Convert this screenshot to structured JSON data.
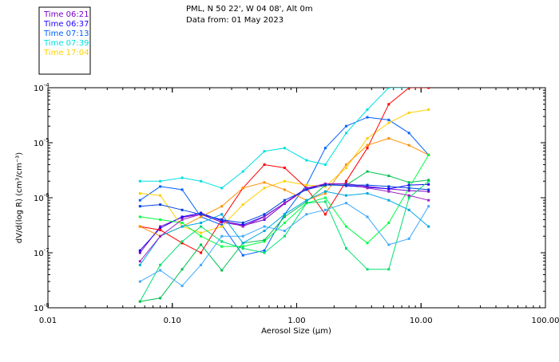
{
  "header": {
    "line1": "PML, N 50 22', W 04 08', Alt 0m",
    "line2": "Data from: 01 May 2023"
  },
  "chart_data": {
    "type": "line",
    "xscale": "log",
    "yscale": "log",
    "xlabel": "Aerosol Size (μm)",
    "ylabel": "dV/d(log R) (cm³/cm⁻³)",
    "xlim": [
      0.01,
      100
    ],
    "ylim": [
      1e-08,
      0.0001
    ],
    "xticks": [
      {
        "value": 0.01,
        "label": "0.01"
      },
      {
        "value": 0.1,
        "label": "0.10"
      },
      {
        "value": 1,
        "label": "1.00"
      },
      {
        "value": 10,
        "label": "10.00"
      },
      {
        "value": 100,
        "label": "100.00"
      }
    ],
    "yticks": [
      {
        "exp": -8,
        "base": "10",
        "sup": "-8"
      },
      {
        "exp": -7,
        "base": "10",
        "sup": "-7"
      },
      {
        "exp": -6,
        "base": "10",
        "sup": "-6"
      },
      {
        "exp": -5,
        "base": "10",
        "sup": "-5"
      },
      {
        "exp": -4,
        "base": "10",
        "sup": "-4"
      }
    ],
    "x": [
      0.055,
      0.08,
      0.12,
      0.17,
      0.25,
      0.37,
      0.55,
      0.8,
      1.2,
      1.7,
      2.5,
      3.7,
      5.5,
      8.0,
      11.5
    ],
    "series": [
      {
        "name": "Time 06:21",
        "color": "#7a00c8",
        "legend": true,
        "values": [
          1e-07,
          3e-07,
          4.4e-07,
          5e-07,
          3.6e-07,
          3.1e-07,
          4e-07,
          7.8e-07,
          1.45e-06,
          1.75e-06,
          1.8e-06,
          1.6e-06,
          1.45e-06,
          1.35e-06,
          1.3e-06
        ]
      },
      {
        "name": "Time 06:37",
        "color": "#2000ff",
        "legend": true,
        "values": [
          1.1e-07,
          2.8e-07,
          4.5e-07,
          5.3e-07,
          3.8e-07,
          3.2e-07,
          4.6e-07,
          8e-07,
          1.5e-06,
          1.75e-06,
          1.65e-06,
          1.55e-06,
          1.45e-06,
          1.7e-06,
          1.75e-06
        ]
      },
      {
        "name": "Time 07:13",
        "color": "#0060ff",
        "legend": true,
        "values": [
          9e-07,
          1.6e-06,
          1.4e-06,
          4.5e-07,
          3.2e-07,
          9e-08,
          1.1e-07,
          5e-07,
          1.7e-06,
          8e-06,
          2e-05,
          2.9e-05,
          2.6e-05,
          1.5e-05,
          6e-06
        ]
      },
      {
        "name": "Time 07:39",
        "color": "#00e0e0",
        "legend": true,
        "values": [
          2e-06,
          2e-06,
          2.3e-06,
          2e-06,
          1.5e-06,
          3e-06,
          7e-06,
          8e-06,
          4.8e-06,
          4e-06,
          1.5e-05,
          4e-05,
          0.0001,
          0.0001,
          0.0001
        ]
      },
      {
        "name": "Time 17:04",
        "color": "#ffd000",
        "legend": true,
        "values": [
          1.2e-06,
          1.1e-06,
          3e-07,
          2.3e-07,
          3e-07,
          7.5e-07,
          1.5e-06,
          2e-06,
          1.7e-06,
          1.6e-06,
          3.5e-06,
          1.2e-05,
          2.3e-05,
          3.5e-05,
          4e-05
        ]
      },
      {
        "name": "",
        "color": "#ff0000",
        "legend": false,
        "values": [
          3e-07,
          2.6e-07,
          1.5e-07,
          1e-07,
          4e-07,
          1.5e-06,
          4e-06,
          3.5e-06,
          1.5e-06,
          5e-07,
          2e-06,
          8e-06,
          5e-05,
          0.0001,
          0.0001
        ]
      },
      {
        "name": "",
        "color": "#ff9000",
        "legend": false,
        "values": [
          3e-07,
          2e-07,
          3e-07,
          4.5e-07,
          7e-07,
          1.5e-06,
          1.9e-06,
          1.4e-06,
          9e-07,
          1.2e-06,
          4e-06,
          9e-06,
          1.2e-05,
          9e-06,
          6e-06
        ]
      },
      {
        "name": "",
        "color": "#00ff40",
        "legend": false,
        "values": [
          4.5e-07,
          4e-07,
          3.5e-07,
          2e-07,
          1.3e-07,
          1.3e-07,
          1.6e-07,
          3.5e-07,
          8e-07,
          1e-06,
          3e-07,
          1.5e-07,
          3.5e-07,
          1.5e-06,
          6e-06
        ]
      },
      {
        "name": "",
        "color": "#00e070",
        "legend": false,
        "values": [
          1.3e-08,
          6e-08,
          1.6e-07,
          3e-07,
          1.6e-07,
          1.2e-07,
          1e-07,
          2e-07,
          8e-07,
          8.5e-07,
          1.2e-07,
          5e-08,
          5e-08,
          1e-06,
          2e-06
        ]
      },
      {
        "name": "",
        "color": "#00c050",
        "legend": false,
        "values": [
          1.3e-08,
          1.5e-08,
          5e-08,
          1.4e-07,
          4.8e-08,
          1.5e-07,
          1.7e-07,
          4.5e-07,
          8.5e-07,
          1.7e-06,
          1.7e-06,
          3e-06,
          2.5e-06,
          1.9e-06,
          2.1e-06
        ]
      },
      {
        "name": "",
        "color": "#40a8ff",
        "legend": false,
        "values": [
          3e-08,
          4.8e-08,
          2.5e-08,
          6e-08,
          2e-07,
          2e-07,
          3e-07,
          2.5e-07,
          5e-07,
          6e-07,
          8e-07,
          4.5e-07,
          1.4e-07,
          1.8e-07,
          7e-07
        ]
      },
      {
        "name": "",
        "color": "#00a8e0",
        "legend": false,
        "values": [
          6e-08,
          2e-07,
          3e-07,
          3.5e-07,
          5e-07,
          1.5e-07,
          2.5e-07,
          5e-07,
          9e-07,
          1.3e-06,
          1.1e-06,
          1.2e-06,
          9e-07,
          6e-07,
          3e-07
        ]
      },
      {
        "name": "",
        "color": "#a020c0",
        "legend": false,
        "values": [
          7e-08,
          2e-07,
          4e-07,
          5e-07,
          4e-07,
          3e-07,
          4.5e-07,
          8e-07,
          1.5e-06,
          1.8e-06,
          1.8e-06,
          1.5e-06,
          1.3e-06,
          1.1e-06,
          9e-07
        ]
      },
      {
        "name": "",
        "color": "#0040e0",
        "legend": false,
        "values": [
          7e-07,
          7.5e-07,
          6e-07,
          5e-07,
          4e-07,
          3.5e-07,
          5e-07,
          9e-07,
          1.4e-06,
          1.7e-06,
          1.7e-06,
          1.7e-06,
          1.6e-06,
          1.5e-06,
          1.4e-06
        ]
      }
    ]
  }
}
